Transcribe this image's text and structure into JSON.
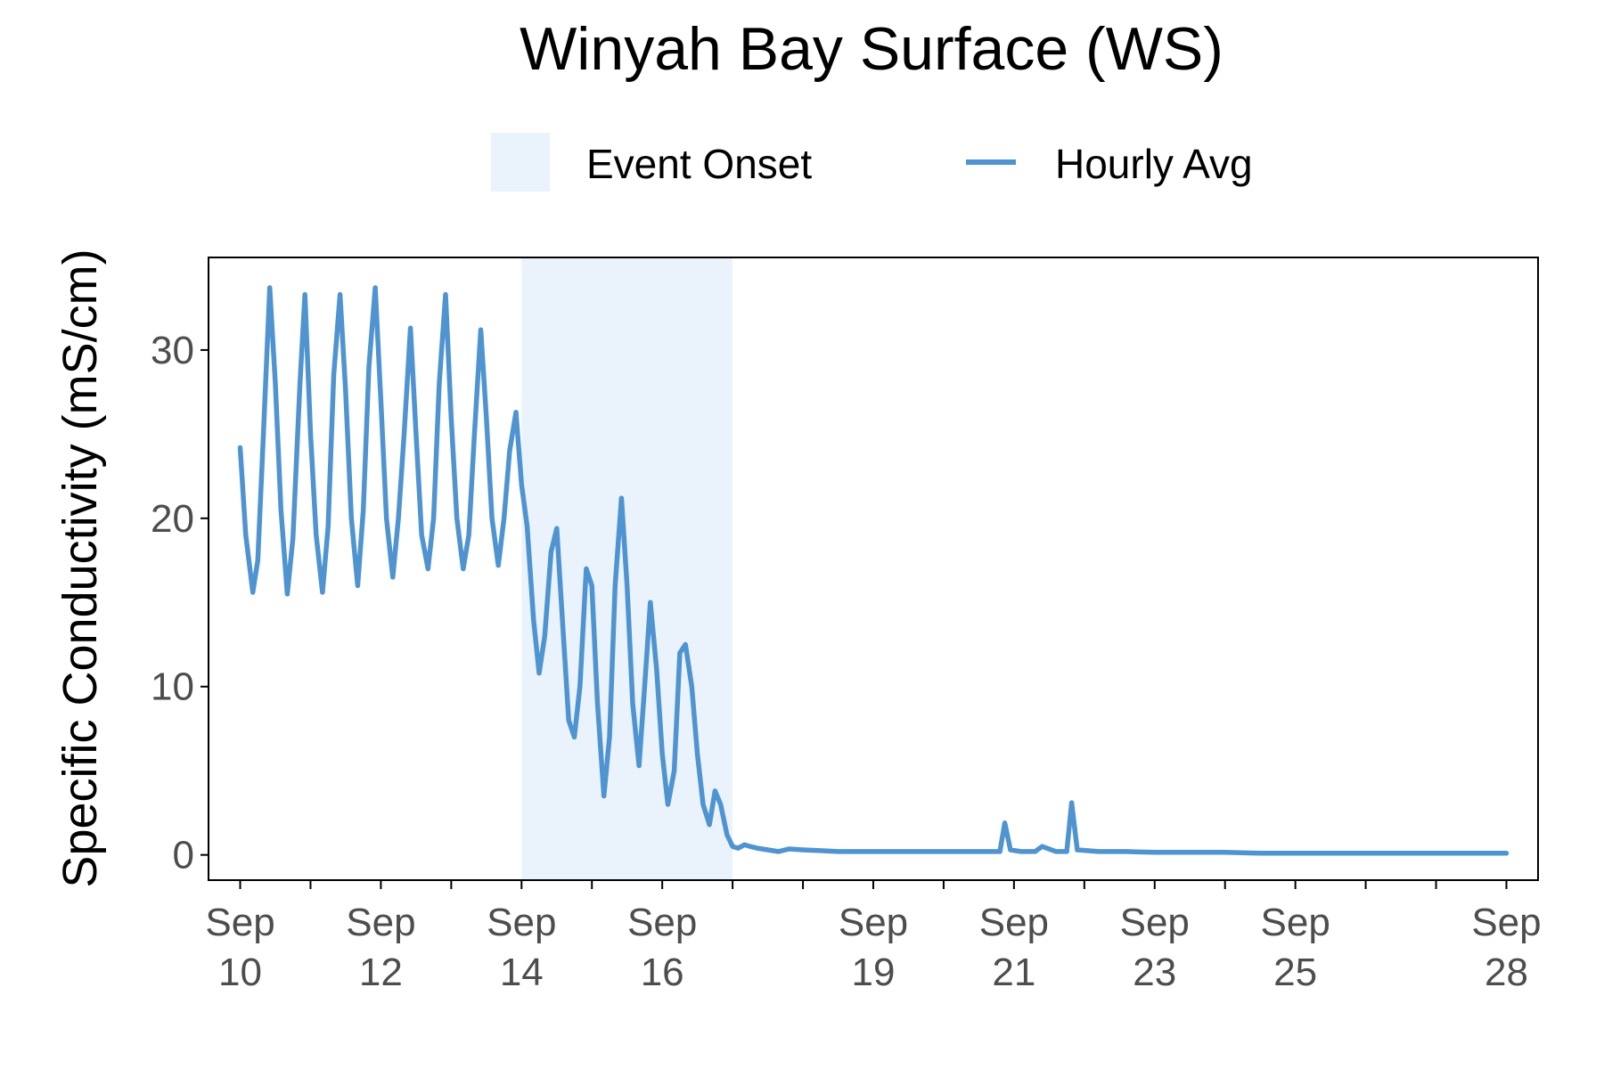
{
  "chart_data": {
    "type": "line",
    "title": "Winyah Bay Surface (WS)",
    "ylabel": "Specific Conductivity (mS/cm)",
    "xlabel": "",
    "ylim": [
      -1.5,
      35.5
    ],
    "xlim": [
      9.55,
      28.45
    ],
    "y_ticks": [
      0,
      10,
      20,
      30
    ],
    "x_ticks": [
      {
        "x": 10,
        "line1": "Sep",
        "line2": "10"
      },
      {
        "x": 12,
        "line1": "Sep",
        "line2": "12"
      },
      {
        "x": 14,
        "line1": "Sep",
        "line2": "14"
      },
      {
        "x": 16,
        "line1": "Sep",
        "line2": "16"
      },
      {
        "x": 19,
        "line1": "Sep",
        "line2": "19"
      },
      {
        "x": 21,
        "line1": "Sep",
        "line2": "21"
      },
      {
        "x": 23,
        "line1": "Sep",
        "line2": "23"
      },
      {
        "x": 25,
        "line1": "Sep",
        "line2": "25"
      },
      {
        "x": 28,
        "line1": "Sep",
        "line2": "28"
      }
    ],
    "minor_ticks": [
      11,
      13,
      15,
      17,
      18,
      20,
      22,
      24,
      26,
      27
    ],
    "x_unit": "day of September",
    "grid": false,
    "legend_position": "top",
    "legend": {
      "event_label": "Event Onset",
      "series_label": "Hourly Avg"
    },
    "colors": {
      "line": "#4f94d0",
      "event_fill": "#eaf3fb",
      "axis": "#000000",
      "tick_text": "#4d4d4d"
    },
    "event_onset": {
      "x_start": 14.0,
      "x_end": 17.0
    },
    "series": [
      {
        "name": "Hourly Avg",
        "x": [
          10.0,
          10.08,
          10.18,
          10.25,
          10.33,
          10.42,
          10.5,
          10.58,
          10.67,
          10.75,
          10.85,
          10.92,
          11.0,
          11.08,
          11.17,
          11.25,
          11.33,
          11.42,
          11.5,
          11.58,
          11.67,
          11.75,
          11.83,
          11.92,
          12.0,
          12.08,
          12.17,
          12.25,
          12.33,
          12.42,
          12.5,
          12.58,
          12.67,
          12.75,
          12.83,
          12.92,
          13.0,
          13.08,
          13.17,
          13.25,
          13.33,
          13.42,
          13.5,
          13.58,
          13.67,
          13.75,
          13.83,
          13.92,
          14.0,
          14.08,
          14.17,
          14.25,
          14.33,
          14.42,
          14.5,
          14.58,
          14.67,
          14.75,
          14.83,
          14.92,
          15.0,
          15.08,
          15.17,
          15.25,
          15.33,
          15.42,
          15.5,
          15.58,
          15.67,
          15.75,
          15.83,
          15.92,
          16.0,
          16.08,
          16.17,
          16.25,
          16.33,
          16.42,
          16.5,
          16.58,
          16.67,
          16.75,
          16.83,
          16.92,
          17.0,
          17.08,
          17.17,
          17.25,
          17.35,
          17.5,
          17.65,
          17.8,
          18.0,
          18.25,
          18.5,
          18.75,
          19.0,
          19.5,
          20.0,
          20.5,
          20.8,
          20.87,
          20.95,
          21.1,
          21.3,
          21.4,
          21.6,
          21.75,
          21.82,
          21.9,
          22.2,
          22.6,
          23.0,
          23.5,
          24.0,
          24.5,
          25.0,
          25.5,
          26.0,
          26.5,
          27.0,
          27.5,
          28.0
        ],
        "values": [
          24.2,
          19.0,
          15.6,
          17.5,
          25.0,
          33.7,
          28.0,
          20.5,
          15.5,
          18.8,
          28.0,
          33.3,
          25.0,
          19.0,
          15.6,
          19.5,
          28.5,
          33.3,
          27.5,
          20.0,
          16.0,
          20.5,
          29.0,
          33.7,
          27.0,
          20.0,
          16.5,
          20.0,
          25.0,
          31.3,
          25.0,
          19.0,
          17.0,
          20.0,
          28.0,
          33.3,
          26.0,
          20.0,
          17.0,
          19.0,
          25.0,
          31.2,
          26.0,
          20.0,
          17.2,
          20.0,
          24.0,
          26.3,
          22.0,
          19.5,
          14.0,
          10.8,
          13.0,
          18.0,
          19.4,
          14.0,
          8.0,
          7.0,
          10.0,
          17.0,
          16.0,
          9.0,
          3.5,
          7.0,
          16.0,
          21.2,
          16.0,
          9.0,
          5.3,
          10.0,
          15.0,
          11.0,
          6.0,
          3.0,
          5.0,
          12.0,
          12.5,
          10.0,
          6.0,
          3.0,
          1.8,
          3.8,
          3.0,
          1.2,
          0.5,
          0.4,
          0.6,
          0.5,
          0.4,
          0.3,
          0.2,
          0.35,
          0.3,
          0.25,
          0.2,
          0.2,
          0.2,
          0.2,
          0.2,
          0.2,
          0.2,
          1.9,
          0.3,
          0.2,
          0.2,
          0.5,
          0.2,
          0.2,
          3.1,
          0.3,
          0.2,
          0.2,
          0.15,
          0.15,
          0.15,
          0.1,
          0.1,
          0.1,
          0.1,
          0.1,
          0.1,
          0.1,
          0.1
        ]
      }
    ]
  }
}
